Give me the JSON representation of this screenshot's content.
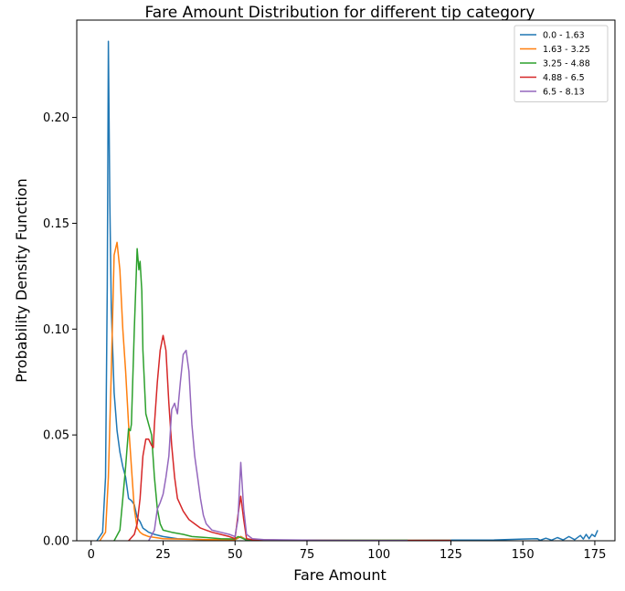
{
  "chart_data": {
    "type": "line",
    "title": "Fare Amount Distribution for different tip category",
    "xlabel": "Fare Amount",
    "ylabel": "Probability Density Function",
    "xlim": [
      -5,
      182
    ],
    "ylim": [
      0,
      0.246
    ],
    "xticks": [
      0,
      25,
      50,
      75,
      100,
      125,
      150,
      175
    ],
    "xtick_labels": [
      "0",
      "25",
      "50",
      "75",
      "100",
      "125",
      "150",
      "175"
    ],
    "yticks": [
      0.0,
      0.05,
      0.1,
      0.15,
      0.2
    ],
    "ytick_labels": [
      "0.00",
      "0.05",
      "0.10",
      "0.15",
      "0.20"
    ],
    "grid": false,
    "legend_position": "top-right",
    "series": [
      {
        "name": "0.0 - 1.63",
        "color": "#1f77b4",
        "points": [
          [
            2,
            0
          ],
          [
            4,
            0.004
          ],
          [
            5,
            0.03
          ],
          [
            5.6,
            0.12
          ],
          [
            6,
            0.236
          ],
          [
            6.5,
            0.16
          ],
          [
            7,
            0.11
          ],
          [
            8,
            0.07
          ],
          [
            9,
            0.052
          ],
          [
            10,
            0.042
          ],
          [
            11,
            0.035
          ],
          [
            12,
            0.03
          ],
          [
            13,
            0.02
          ],
          [
            14,
            0.019
          ],
          [
            15,
            0.017
          ],
          [
            16,
            0.011
          ],
          [
            17,
            0.009
          ],
          [
            18,
            0.006
          ],
          [
            19,
            0.005
          ],
          [
            20,
            0.004
          ],
          [
            22,
            0.003
          ],
          [
            25,
            0.002
          ],
          [
            30,
            0.001
          ],
          [
            40,
            0.0005
          ],
          [
            50,
            0.0005
          ],
          [
            52,
            0.002
          ],
          [
            54,
            0.0005
          ],
          [
            60,
            0.0003
          ],
          [
            80,
            0.0002
          ],
          [
            100,
            0.0002
          ],
          [
            120,
            0.0003
          ],
          [
            140,
            0.0004
          ],
          [
            150,
            0.0008
          ],
          [
            155,
            0.001
          ],
          [
            156,
            0.0002
          ],
          [
            158,
            0.0012
          ],
          [
            160,
            0.0003
          ],
          [
            162,
            0.0015
          ],
          [
            164,
            0.0004
          ],
          [
            166,
            0.002
          ],
          [
            168,
            0.0005
          ],
          [
            170,
            0.0025
          ],
          [
            171,
            0.0008
          ],
          [
            172,
            0.003
          ],
          [
            173,
            0.001
          ],
          [
            174,
            0.003
          ],
          [
            175,
            0.002
          ],
          [
            176,
            0.005
          ]
        ]
      },
      {
        "name": "1.63 - 3.25",
        "color": "#ff7f0e",
        "points": [
          [
            3,
            0
          ],
          [
            5,
            0.004
          ],
          [
            6,
            0.03
          ],
          [
            7,
            0.08
          ],
          [
            8,
            0.135
          ],
          [
            9,
            0.141
          ],
          [
            10,
            0.128
          ],
          [
            11,
            0.1
          ],
          [
            12,
            0.08
          ],
          [
            13,
            0.055
          ],
          [
            14,
            0.035
          ],
          [
            15,
            0.015
          ],
          [
            16,
            0.006
          ],
          [
            17,
            0.004
          ],
          [
            18,
            0.003
          ],
          [
            20,
            0.002
          ],
          [
            25,
            0.001
          ],
          [
            40,
            0.0005
          ],
          [
            50,
            0.0005
          ],
          [
            52,
            0.002
          ],
          [
            54,
            0.0003
          ],
          [
            70,
            0.0002
          ],
          [
            100,
            0.0002
          ],
          [
            125,
            0.0002
          ]
        ]
      },
      {
        "name": "3.25 - 4.88",
        "color": "#2ca02c",
        "points": [
          [
            8,
            0
          ],
          [
            10,
            0.005
          ],
          [
            11,
            0.02
          ],
          [
            12,
            0.035
          ],
          [
            13,
            0.053
          ],
          [
            13.6,
            0.052
          ],
          [
            14,
            0.055
          ],
          [
            15,
            0.1
          ],
          [
            16,
            0.138
          ],
          [
            16.6,
            0.128
          ],
          [
            17,
            0.132
          ],
          [
            17.6,
            0.118
          ],
          [
            18,
            0.09
          ],
          [
            19,
            0.06
          ],
          [
            20,
            0.055
          ],
          [
            21,
            0.05
          ],
          [
            22,
            0.03
          ],
          [
            23,
            0.015
          ],
          [
            24,
            0.008
          ],
          [
            25,
            0.005
          ],
          [
            28,
            0.004
          ],
          [
            32,
            0.003
          ],
          [
            35,
            0.002
          ],
          [
            40,
            0.0015
          ],
          [
            45,
            0.001
          ],
          [
            50,
            0.0008
          ],
          [
            51,
            0.002
          ],
          [
            52,
            0.0015
          ],
          [
            54,
            0.0003
          ],
          [
            80,
            0.0002
          ],
          [
            110,
            0.0002
          ]
        ]
      },
      {
        "name": "4.88 - 6.5",
        "color": "#d62728",
        "points": [
          [
            13,
            0
          ],
          [
            15,
            0.003
          ],
          [
            16,
            0.008
          ],
          [
            17,
            0.02
          ],
          [
            18,
            0.04
          ],
          [
            19,
            0.048
          ],
          [
            20,
            0.048
          ],
          [
            21,
            0.045
          ],
          [
            21.6,
            0.044
          ],
          [
            22,
            0.055
          ],
          [
            23,
            0.075
          ],
          [
            24,
            0.09
          ],
          [
            25,
            0.097
          ],
          [
            26,
            0.09
          ],
          [
            27,
            0.065
          ],
          [
            28,
            0.045
          ],
          [
            29,
            0.03
          ],
          [
            30,
            0.02
          ],
          [
            32,
            0.014
          ],
          [
            34,
            0.01
          ],
          [
            36,
            0.008
          ],
          [
            38,
            0.006
          ],
          [
            40,
            0.005
          ],
          [
            42,
            0.004
          ],
          [
            45,
            0.003
          ],
          [
            48,
            0.002
          ],
          [
            50,
            0.001
          ],
          [
            51,
            0.012
          ],
          [
            52,
            0.021
          ],
          [
            53,
            0.01
          ],
          [
            54,
            0.001
          ],
          [
            56,
            0.0005
          ],
          [
            70,
            0.0002
          ],
          [
            100,
            0.0001
          ],
          [
            125,
            0.0001
          ]
        ]
      },
      {
        "name": "6.5 - 8.13",
        "color": "#9467bd",
        "points": [
          [
            20,
            0
          ],
          [
            22,
            0.005
          ],
          [
            23,
            0.015
          ],
          [
            24,
            0.018
          ],
          [
            25,
            0.022
          ],
          [
            26,
            0.03
          ],
          [
            27,
            0.04
          ],
          [
            28,
            0.062
          ],
          [
            29,
            0.065
          ],
          [
            30,
            0.06
          ],
          [
            31,
            0.075
          ],
          [
            32,
            0.088
          ],
          [
            33,
            0.09
          ],
          [
            34,
            0.08
          ],
          [
            35,
            0.055
          ],
          [
            36,
            0.04
          ],
          [
            37,
            0.03
          ],
          [
            38,
            0.02
          ],
          [
            39,
            0.012
          ],
          [
            40,
            0.008
          ],
          [
            42,
            0.005
          ],
          [
            45,
            0.004
          ],
          [
            48,
            0.003
          ],
          [
            50,
            0.002
          ],
          [
            51,
            0.01
          ],
          [
            52,
            0.037
          ],
          [
            53,
            0.015
          ],
          [
            54,
            0.003
          ],
          [
            56,
            0.001
          ],
          [
            60,
            0.0005
          ],
          [
            80,
            0.0002
          ],
          [
            110,
            0.0001
          ]
        ]
      }
    ]
  }
}
